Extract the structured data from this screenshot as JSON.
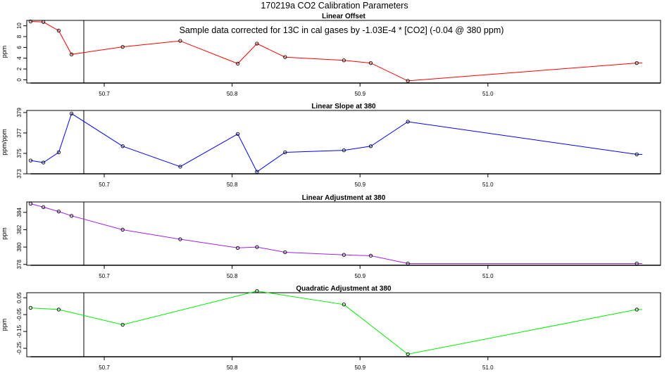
{
  "figure": {
    "title": "170219a   CO2 Calibration Parameters",
    "note": "Sample data corrected for 13C in cal gases by -1.03E-4 * [CO2] (-0.04 @ 380 ppm)"
  },
  "chart_data": [
    {
      "type": "line",
      "title": "Linear Offset",
      "ylabel": "ppm",
      "xlim": [
        50.6394,
        51.135
      ],
      "ylim": [
        -0.6,
        11.0
      ],
      "xticks": [
        "50.7",
        "50.8",
        "50.9",
        "51.0"
      ],
      "yticks": [
        "0",
        "2",
        "4",
        "6",
        "8",
        "10"
      ],
      "vline_x": 50.684,
      "line_color": "#ff0000",
      "x": [
        50.6424,
        50.6524,
        50.6644,
        50.6744,
        50.7144,
        50.7594,
        50.8044,
        50.8194,
        50.8414,
        50.8874,
        50.9084,
        50.9374,
        51.1164
      ],
      "y": [
        10.8,
        10.7,
        9.1,
        4.7,
        6.1,
        7.2,
        3.0,
        6.7,
        4.2,
        3.6,
        3.1,
        -0.2,
        3.1
      ]
    },
    {
      "type": "line",
      "title": "Linear Slope at 380",
      "ylabel": "ppm/ppm",
      "xlim": [
        50.6394,
        51.135
      ],
      "ylim": [
        373.0,
        379.2
      ],
      "xticks": [
        "50.7",
        "50.8",
        "50.9",
        "51.0"
      ],
      "yticks": [
        "373",
        "375",
        "377",
        "379"
      ],
      "vline_x": 50.684,
      "line_color": "#0000ff",
      "x": [
        50.6424,
        50.6524,
        50.6644,
        50.6744,
        50.7144,
        50.7594,
        50.8044,
        50.8194,
        50.8414,
        50.8874,
        50.9084,
        50.9374,
        51.1164
      ],
      "y": [
        374.3,
        374.1,
        375.1,
        378.9,
        375.7,
        373.7,
        376.9,
        373.2,
        375.1,
        375.3,
        375.7,
        378.1,
        374.9
      ]
    },
    {
      "type": "line",
      "title": "Linear Adjustment at 380",
      "ylabel": "ppm",
      "xlim": [
        50.6394,
        51.135
      ],
      "ylim": [
        377.9,
        385.2
      ],
      "xticks": [
        "50.7",
        "50.8",
        "50.9",
        "51.0"
      ],
      "yticks": [
        "378",
        "380",
        "382",
        "384"
      ],
      "vline_x": 50.684,
      "line_color": "#a020f0",
      "x": [
        50.6424,
        50.6524,
        50.6644,
        50.6744,
        50.7144,
        50.7594,
        50.8044,
        50.8194,
        50.8414,
        50.8874,
        50.9084,
        50.9374,
        51.1164
      ],
      "y": [
        385.0,
        384.6,
        384.1,
        383.6,
        382.0,
        380.9,
        379.9,
        380.0,
        379.4,
        379.1,
        379.0,
        378.1,
        378.1
      ]
    },
    {
      "type": "line",
      "title": "Quadratic Adjustment at 380",
      "ylabel": "ppm",
      "xlim": [
        50.6394,
        51.135
      ],
      "ylim": [
        -0.3,
        0.08
      ],
      "xticks": [
        "50.7",
        "50.8",
        "50.9",
        "51.0"
      ],
      "yticks": [
        "-0.25",
        "-0.15",
        "-0.05",
        "0.05"
      ],
      "vline_x": 50.684,
      "line_color": "#00ee00",
      "x": [
        50.6424,
        50.6644,
        50.7144,
        50.8194,
        50.8874,
        50.9374,
        51.1164
      ],
      "y": [
        -0.01,
        -0.02,
        -0.11,
        0.09,
        0.01,
        -0.285,
        -0.02
      ]
    }
  ]
}
